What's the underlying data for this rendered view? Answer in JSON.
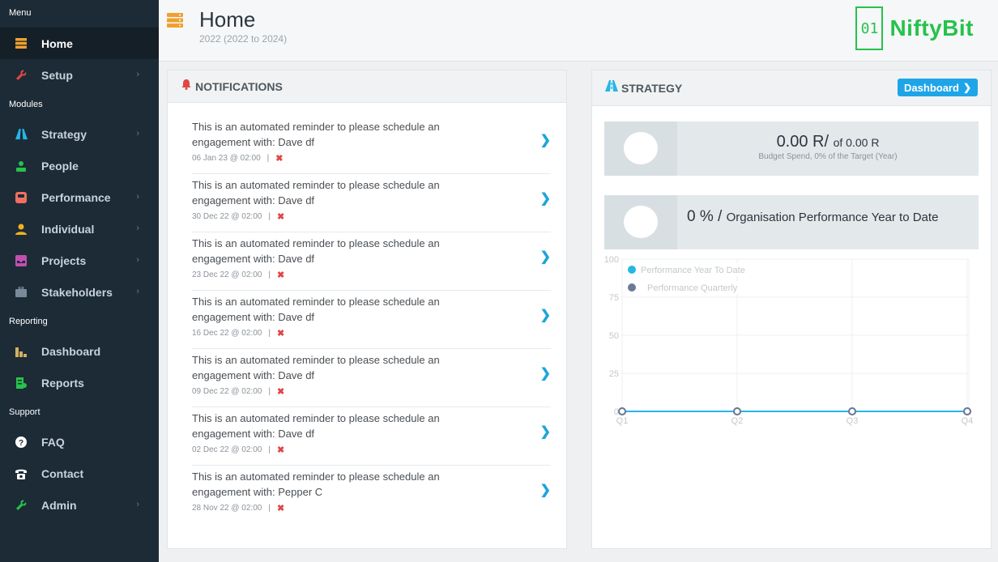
{
  "sidebar": {
    "sections": [
      {
        "title": "Menu",
        "items": [
          {
            "label": "Home",
            "icon": "server-icon",
            "color": "#f0a030",
            "chevron": false,
            "active": true
          },
          {
            "label": "Setup",
            "icon": "wrench-icon",
            "color": "#e04646",
            "chevron": true,
            "active": false
          }
        ]
      },
      {
        "title": "Modules",
        "items": [
          {
            "label": "Strategy",
            "icon": "road-icon",
            "color": "#27b6e6",
            "chevron": true,
            "active": false
          },
          {
            "label": "People",
            "icon": "sitemap-icon",
            "color": "#27c24c",
            "chevron": false,
            "active": false
          },
          {
            "label": "Performance",
            "icon": "gauge-icon",
            "color": "#f07060",
            "chevron": true,
            "active": false
          },
          {
            "label": "Individual",
            "icon": "user-icon",
            "color": "#f0b020",
            "chevron": true,
            "active": false
          },
          {
            "label": "Projects",
            "icon": "inbox-icon",
            "color": "#c050b0",
            "chevron": true,
            "active": false
          },
          {
            "label": "Stakeholders",
            "icon": "briefcase-icon",
            "color": "#7a8a9a",
            "chevron": true,
            "active": false
          }
        ]
      },
      {
        "title": "Reporting",
        "items": [
          {
            "label": "Dashboard",
            "icon": "bar-chart-icon",
            "color": "#d4b060",
            "chevron": false,
            "active": false
          },
          {
            "label": "Reports",
            "icon": "report-icon",
            "color": "#27c24c",
            "chevron": false,
            "active": false
          }
        ]
      },
      {
        "title": "Support",
        "items": [
          {
            "label": "FAQ",
            "icon": "question-icon",
            "color": "#ffffff",
            "chevron": false,
            "active": false
          },
          {
            "label": "Contact",
            "icon": "phone-icon",
            "color": "#ffffff",
            "chevron": false,
            "active": false
          },
          {
            "label": "Admin",
            "icon": "wrench-icon",
            "color": "#27c24c",
            "chevron": true,
            "active": false
          }
        ]
      }
    ]
  },
  "header": {
    "title": "Home",
    "subtitle": "2022 (2022 to 2024)",
    "logo_mark": "01",
    "logo_text": "NiftyBit"
  },
  "notifications": {
    "title": "NOTIFICATIONS",
    "items": [
      {
        "message": "This is an automated reminder to please schedule an engagement with: Dave df",
        "date": "06 Jan 23 @ 02:00",
        "separator": "|"
      },
      {
        "message": "This is an automated reminder to please schedule an engagement with: Dave df",
        "date": "30 Dec 22 @ 02:00",
        "separator": "|"
      },
      {
        "message": "This is an automated reminder to please schedule an engagement with: Dave df",
        "date": "23 Dec 22 @ 02:00",
        "separator": "|"
      },
      {
        "message": "This is an automated reminder to please schedule an engagement with: Dave df",
        "date": "16 Dec 22 @ 02:00",
        "separator": "|"
      },
      {
        "message": "This is an automated reminder to please schedule an engagement with: Dave df",
        "date": "09 Dec 22 @ 02:00",
        "separator": "|"
      },
      {
        "message": "This is an automated reminder to please schedule an engagement with: Dave df",
        "date": "02 Dec 22 @ 02:00",
        "separator": "|"
      },
      {
        "message": "This is an automated reminder to please schedule an engagement with: Pepper C",
        "date": "28 Nov 22 @ 02:00",
        "separator": "|"
      }
    ]
  },
  "strategy": {
    "title": "STRATEGY",
    "dashboard_button": "Dashboard",
    "budget": {
      "value": "0.00 R/",
      "of_text": "of 0.00 R",
      "caption": "Budget Spend, 0% of the Target (Year)"
    },
    "performance": {
      "value": "0 % /",
      "label": "Organisation Performance Year to Date"
    }
  },
  "chart_data": {
    "type": "line",
    "categories": [
      "Q1",
      "Q2",
      "Q3",
      "Q4"
    ],
    "series": [
      {
        "name": "Performance Year To Date",
        "values": [
          0,
          0,
          0,
          0
        ],
        "color": "#27b6e6"
      },
      {
        "name": "Performance Quarterly",
        "values": [
          0,
          0,
          0,
          0
        ],
        "color": "#6c7a96"
      }
    ],
    "yticks": [
      "0",
      "25",
      "50",
      "75",
      "100"
    ],
    "ylim": [
      0,
      100
    ],
    "grid": true,
    "legend": "top-left"
  }
}
